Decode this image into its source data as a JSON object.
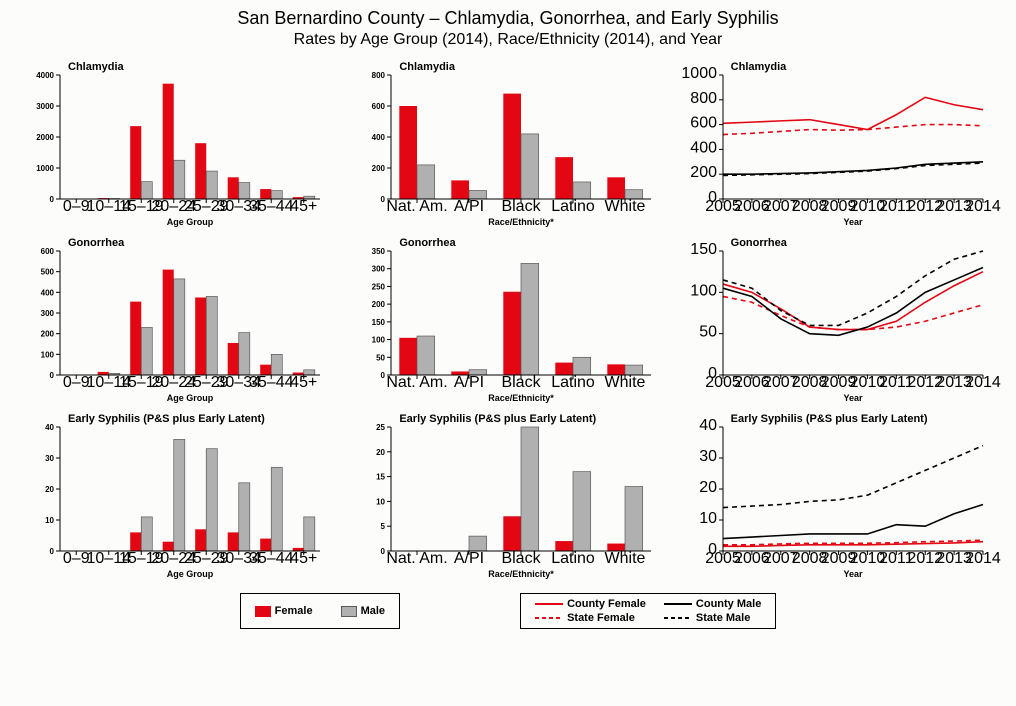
{
  "titles": {
    "main": "San Bernardino County – Chlamydia, Gonorrhea, and Early Syphilis",
    "sub": "Rates by Age Group (2014), Race/Ethnicity (2014), and Year"
  },
  "colors": {
    "female": "#e30613",
    "male": "#b0b0b0",
    "maleStroke": "#5a5a5a",
    "county_female": "#e30613",
    "state_female": "#e30613",
    "county_male": "#000000",
    "state_male": "#000000",
    "axis": "#000000",
    "background": "#fcfcfa"
  },
  "ageCategories": [
    "0–9",
    "10–14",
    "15–19",
    "20–24",
    "25–29",
    "30–34",
    "35–44",
    "45+"
  ],
  "raceCategories": [
    "Nat. Am.",
    "A/PI",
    "Black",
    "Latino",
    "White"
  ],
  "years": [
    2005,
    2006,
    2007,
    2008,
    2009,
    2010,
    2011,
    2012,
    2013,
    2014
  ],
  "axisLabels": {
    "age": "Age Group",
    "race": "Race/Ethnicity*",
    "year": "Year"
  },
  "panels": [
    {
      "id": "chl-age",
      "title": "Chlamydia",
      "type": "bar",
      "xType": "age",
      "yMax": 4000,
      "yStep": 1000,
      "female": [
        0,
        30,
        2350,
        3720,
        1800,
        700,
        320,
        60
      ],
      "male": [
        0,
        15,
        560,
        1250,
        900,
        530,
        270,
        90
      ]
    },
    {
      "id": "chl-race",
      "title": "Chlamydia",
      "type": "bar",
      "xType": "race",
      "yMax": 800,
      "yStep": 200,
      "female": [
        600,
        120,
        680,
        270,
        140
      ],
      "male": [
        220,
        55,
        420,
        110,
        60
      ]
    },
    {
      "id": "chl-year",
      "title": "Chlamydia",
      "type": "line",
      "xType": "year",
      "yMax": 1000,
      "yStep": 200,
      "series": {
        "county_female": [
          610,
          620,
          630,
          640,
          600,
          560,
          680,
          820,
          760,
          720
        ],
        "state_female": [
          520,
          530,
          545,
          560,
          555,
          560,
          580,
          600,
          600,
          590
        ],
        "county_male": [
          200,
          200,
          205,
          210,
          220,
          230,
          250,
          280,
          290,
          300
        ],
        "state_male": [
          190,
          195,
          200,
          205,
          215,
          225,
          245,
          270,
          280,
          290
        ]
      }
    },
    {
      "id": "gon-age",
      "title": "Gonorrhea",
      "type": "bar",
      "xType": "age",
      "yMax": 600,
      "yStep": 100,
      "female": [
        0,
        15,
        355,
        510,
        375,
        155,
        50,
        12
      ],
      "male": [
        0,
        8,
        230,
        465,
        380,
        205,
        100,
        25
      ]
    },
    {
      "id": "gon-race",
      "title": "Gonorrhea",
      "type": "bar",
      "xType": "race",
      "yMax": 350,
      "yStep": 50,
      "female": [
        105,
        10,
        235,
        35,
        30
      ],
      "male": [
        110,
        15,
        315,
        50,
        28
      ]
    },
    {
      "id": "gon-year",
      "title": "Gonorrhea",
      "type": "line",
      "xType": "year",
      "yMax": 150,
      "yStep": 50,
      "series": {
        "county_female": [
          110,
          100,
          80,
          58,
          55,
          55,
          65,
          88,
          108,
          125
        ],
        "state_female": [
          95,
          88,
          72,
          58,
          55,
          55,
          58,
          65,
          75,
          85
        ],
        "county_male": [
          105,
          95,
          68,
          50,
          48,
          58,
          75,
          100,
          115,
          130
        ],
        "state_male": [
          115,
          105,
          78,
          60,
          60,
          75,
          95,
          120,
          140,
          158
        ]
      }
    },
    {
      "id": "syp-age",
      "title": "Early Syphilis (P&S plus Early Latent)",
      "type": "bar",
      "xType": "age",
      "yMax": 40,
      "yStep": 10,
      "female": [
        0,
        0,
        6,
        3,
        7,
        6,
        4,
        1
      ],
      "male": [
        0,
        0,
        11,
        36,
        33,
        22,
        27,
        11
      ]
    },
    {
      "id": "syp-race",
      "title": "Early Syphilis (P&S plus Early Latent)",
      "type": "bar",
      "xType": "race",
      "yMax": 25,
      "yStep": 5,
      "female": [
        0,
        0,
        7,
        2,
        1.5
      ],
      "male": [
        0,
        3,
        25,
        16,
        13
      ]
    },
    {
      "id": "syp-year",
      "title": "Early Syphilis (P&S plus Early Latent)",
      "type": "line",
      "xType": "year",
      "yMax": 40,
      "yStep": 10,
      "series": {
        "county_female": [
          1.5,
          1.5,
          1.8,
          2,
          2,
          2,
          2.2,
          2.4,
          2.6,
          3
        ],
        "state_female": [
          2,
          2,
          2.3,
          2.5,
          2.5,
          2.5,
          2.7,
          3,
          3.2,
          3.5
        ],
        "county_male": [
          4,
          4.5,
          5,
          5.5,
          5.5,
          5.5,
          8.5,
          8,
          12,
          15
        ],
        "state_male": [
          14,
          14.5,
          15,
          16,
          16.5,
          18,
          22,
          26,
          30,
          34
        ]
      }
    }
  ],
  "legend": {
    "bars": [
      {
        "label": "Female",
        "fill": "#e30613",
        "stroke": "#e30613"
      },
      {
        "label": "Male",
        "fill": "#b0b0b0",
        "stroke": "#5a5a5a"
      }
    ],
    "lines": [
      {
        "label": "County Female",
        "color": "#e30613",
        "dash": ""
      },
      {
        "label": "County Male",
        "color": "#000000",
        "dash": ""
      },
      {
        "label": "State Female",
        "color": "#e30613",
        "dash": "4,3"
      },
      {
        "label": "State Male",
        "color": "#000000",
        "dash": "4,3"
      }
    ]
  }
}
